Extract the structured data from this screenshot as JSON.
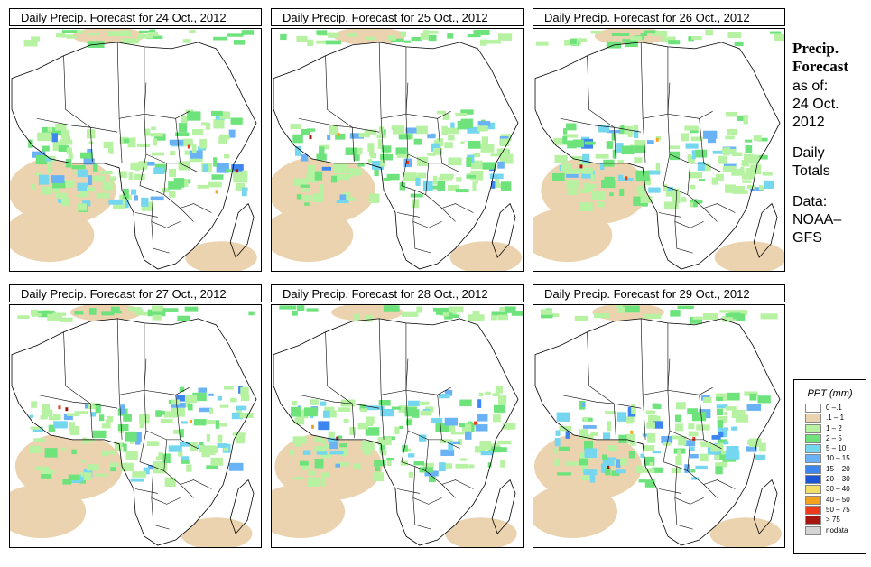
{
  "panels": [
    {
      "title": "Daily Precip. Forecast for  24 Oct., 2012"
    },
    {
      "title": "Daily Precip. Forecast for  25 Oct., 2012"
    },
    {
      "title": "Daily Precip. Forecast for  26 Oct., 2012"
    },
    {
      "title": "Daily Precip. Forecast for  27 Oct., 2012"
    },
    {
      "title": "Daily Precip. Forecast for  28 Oct., 2012"
    },
    {
      "title": "Daily Precip. Forecast for  29 Oct., 2012"
    }
  ],
  "sidebar": {
    "heading_1": "Precip.",
    "heading_2": "Forecast",
    "asof_label": "as of:",
    "date_1": "24 Oct.",
    "date_2": "2012",
    "totals_1": "Daily",
    "totals_2": "Totals",
    "data_label": "Data:",
    "source_1": "NOAA–",
    "source_2": "GFS"
  },
  "legend": {
    "title": "PPT (mm)",
    "items": [
      {
        "label": "0 –.1",
        "color": "#ffffff"
      },
      {
        "label": ".1 – 1",
        "color": "#ead3ae"
      },
      {
        "label": "1 – 2",
        "color": "#b6f2a2"
      },
      {
        "label": "2 – 5",
        "color": "#6ee37c"
      },
      {
        "label": "5 – 10",
        "color": "#74d6ef"
      },
      {
        "label": "10 – 15",
        "color": "#6ab2f6"
      },
      {
        "label": "15 – 20",
        "color": "#3e86ef"
      },
      {
        "label": "20 – 30",
        "color": "#1c55d6"
      },
      {
        "label": "30 – 40",
        "color": "#f4de6a"
      },
      {
        "label": "40 – 50",
        "color": "#f5a31e"
      },
      {
        "label": "50 – 75",
        "color": "#ec3a1a"
      },
      {
        "label": "> 75",
        "color": "#a81410"
      },
      {
        "label": "nodata",
        "color": "#d4d4d4"
      }
    ]
  },
  "colors": {
    "land_outline": "#000000",
    "dry": "#ead3ae",
    "light_rain": "#b6f2a2",
    "moderate_rain": "#6ee37c",
    "heavy_rain": "#3e86ef"
  }
}
